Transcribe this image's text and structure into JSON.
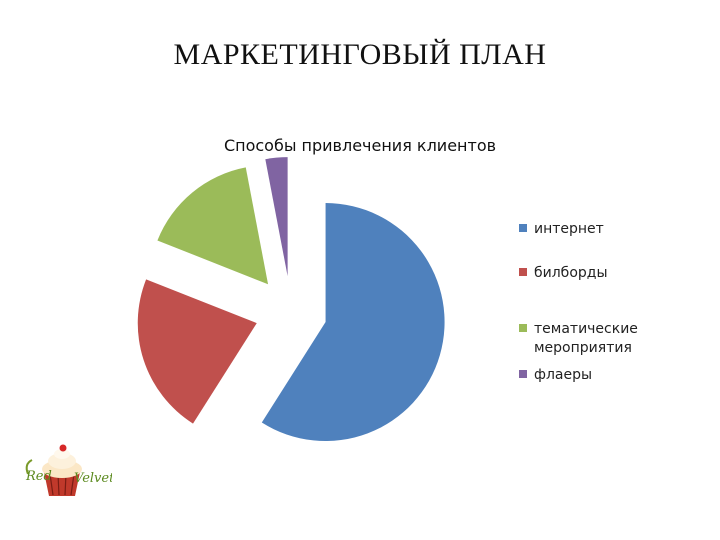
{
  "slide": {
    "title": "МАРКЕТИНГОВЫЙ ПЛАН"
  },
  "chart_data": {
    "type": "pie",
    "title": "Способы привлечения клиентов",
    "categories": [
      "интернет",
      "билборды",
      "тематические мероприятия",
      "флаеры"
    ],
    "legend_labels": [
      "интернет",
      "билборды",
      "тематические\nмероприятия",
      "флаеры"
    ],
    "values": [
      59,
      22,
      16,
      3
    ],
    "colors": [
      "#4f81bd",
      "#c0504d",
      "#9bbb59",
      "#8064a2"
    ],
    "exploded": true,
    "legend_position": "right"
  },
  "logo": {
    "text": "Red Velvet"
  }
}
